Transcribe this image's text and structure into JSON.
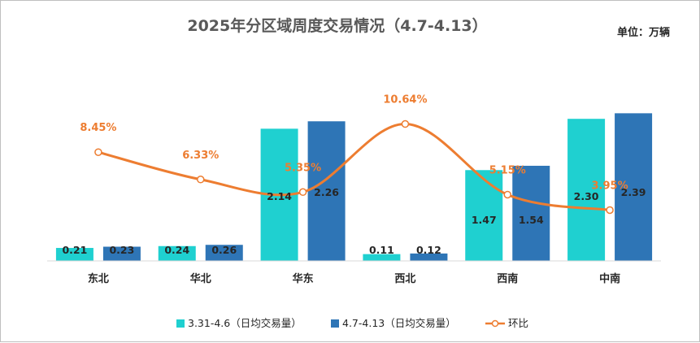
{
  "chart_data": {
    "type": "bar",
    "title": "2025年分区域周度交易情况（4.7-4.13）",
    "unit_label": "单位：万辆",
    "categories": [
      "东北",
      "华北",
      "华东",
      "西北",
      "西南",
      "中南"
    ],
    "series": [
      {
        "name": "3.31-4.6（日均交易量）",
        "type": "bar",
        "color": "#1fd0d0",
        "values": [
          0.21,
          0.24,
          2.14,
          0.11,
          1.47,
          2.3
        ]
      },
      {
        "name": "4.7-4.13（日均交易量）",
        "type": "bar",
        "color": "#2e75b6",
        "values": [
          0.23,
          0.26,
          2.26,
          0.12,
          1.54,
          2.39
        ]
      },
      {
        "name": "环比",
        "type": "line",
        "axis": "secondary",
        "color": "#ed7d31",
        "values": [
          8.45,
          6.33,
          5.35,
          10.64,
          5.15,
          3.95
        ],
        "value_labels": [
          "8.45%",
          "6.33%",
          "5.35%",
          "10.64%",
          "5.15%",
          "3.95%"
        ]
      }
    ],
    "value_labels": {
      "s0": [
        "0.21",
        "0.24",
        "2.14",
        "0.11",
        "1.47",
        "2.30"
      ],
      "s1": [
        "0.23",
        "0.26",
        "2.26",
        "0.12",
        "1.54",
        "2.39"
      ]
    },
    "ylim": [
      0,
      2.5
    ],
    "y2lim": [
      0,
      12
    ],
    "grid": false,
    "legend_position": "bottom"
  }
}
